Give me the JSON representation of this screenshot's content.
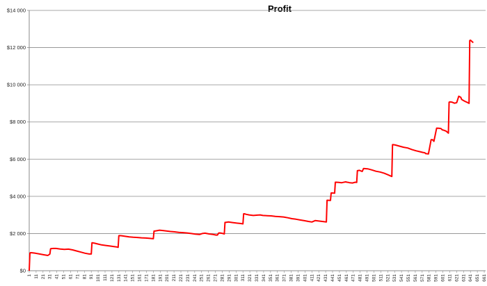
{
  "chart_data": {
    "type": "line",
    "title": "Profit",
    "xlabel": "",
    "ylabel": "",
    "ylim": [
      0,
      14000
    ],
    "xlim": [
      1,
      663
    ],
    "grid": "horizontal",
    "legend": "none",
    "colors": {
      "series": "#ff0000",
      "grid": "#8a8a8a",
      "axis": "#8a8a8a"
    },
    "y_tick_values": [
      0,
      2000,
      4000,
      6000,
      8000,
      10000,
      12000,
      14000
    ],
    "y_tick_labels": [
      "$0",
      "$2 000",
      "$4 000",
      "$6 000",
      "$8 000",
      "$10 000",
      "$12 000",
      "$14 000"
    ],
    "x_tick_values": [
      1,
      11,
      21,
      31,
      41,
      51,
      61,
      71,
      81,
      91,
      101,
      111,
      121,
      131,
      141,
      151,
      161,
      171,
      181,
      191,
      201,
      211,
      221,
      231,
      241,
      251,
      261,
      271,
      281,
      291,
      301,
      311,
      321,
      331,
      341,
      351,
      361,
      371,
      381,
      391,
      401,
      411,
      421,
      431,
      441,
      451,
      461,
      471,
      481,
      491,
      501,
      511,
      521,
      531,
      541,
      551,
      561,
      571,
      581,
      591,
      601,
      611,
      621,
      631,
      641,
      651,
      661
    ],
    "x_tick_labels": [
      "1",
      "11",
      "21",
      "31",
      "41",
      "51",
      "61",
      "71",
      "81",
      "91",
      "101",
      "111",
      "121",
      "131",
      "141",
      "151",
      "161",
      "171",
      "181",
      "191",
      "201",
      "211",
      "221",
      "231",
      "241",
      "251",
      "261",
      "271",
      "281",
      "291",
      "301",
      "311",
      "321",
      "331",
      "341",
      "351",
      "361",
      "371",
      "381",
      "391",
      "401",
      "411",
      "421",
      "431",
      "441",
      "451",
      "461",
      "471",
      "481",
      "491",
      "501",
      "511",
      "521",
      "531",
      "541",
      "551",
      "561",
      "571",
      "581",
      "591",
      "601",
      "611",
      "621",
      "631",
      "641",
      "651",
      "661"
    ],
    "series": [
      {
        "x": [
          1,
          2,
          3,
          6,
          10,
          16,
          22,
          28,
          31,
          32,
          33,
          36,
          40,
          46,
          52,
          58,
          64,
          70,
          76,
          82,
          88,
          91,
          92,
          93,
          96,
          100,
          106,
          112,
          118,
          124,
          128,
          130,
          131,
          132,
          135,
          140,
          146,
          152,
          158,
          164,
          170,
          176,
          181,
          182,
          183,
          186,
          190,
          195,
          200,
          206,
          212,
          218,
          224,
          230,
          236,
          242,
          248,
          252,
          256,
          262,
          268,
          272,
          274,
          276,
          278,
          282,
          284,
          285,
          286,
          290,
          296,
          302,
          308,
          311,
          312,
          313,
          316,
          320,
          326,
          332,
          336,
          340,
          346,
          352,
          358,
          364,
          370,
          376,
          382,
          388,
          394,
          400,
          406,
          411,
          416,
          420,
          424,
          428,
          432,
          433,
          434,
          438,
          439,
          440,
          444,
          445,
          446,
          450,
          452,
          454,
          456,
          460,
          462,
          464,
          466,
          470,
          474,
          476,
          477,
          480,
          484,
          486,
          492,
          498,
          504,
          510,
          516,
          522,
          525,
          527,
          528,
          529,
          532,
          538,
          544,
          550,
          556,
          562,
          568,
          572,
          574,
          575,
          576,
          580,
          584,
          586,
          587,
          588,
          592,
          595,
          598,
          599,
          600,
          603,
          606,
          609,
          610,
          611,
          614,
          618,
          621,
          624,
          627,
          628,
          629,
          633,
          636,
          639,
          640,
          641,
          644,
          645
        ],
        "y": [
          0,
          950,
          970,
          960,
          940,
          900,
          860,
          820,
          900,
          1180,
          1190,
          1200,
          1200,
          1170,
          1150,
          1160,
          1120,
          1060,
          1000,
          940,
          900,
          900,
          1500,
          1500,
          1480,
          1440,
          1390,
          1360,
          1330,
          1300,
          1280,
          1260,
          1880,
          1890,
          1880,
          1850,
          1820,
          1800,
          1790,
          1770,
          1760,
          1740,
          1720,
          2130,
          2130,
          2150,
          2180,
          2160,
          2140,
          2110,
          2090,
          2060,
          2050,
          2030,
          2000,
          1970,
          1950,
          2000,
          2020,
          1980,
          1950,
          1920,
          1920,
          2030,
          2030,
          2000,
          1980,
          2600,
          2600,
          2620,
          2590,
          2560,
          2540,
          2520,
          3060,
          3060,
          3030,
          3000,
          2970,
          2990,
          3000,
          2970,
          2960,
          2950,
          2920,
          2910,
          2890,
          2850,
          2800,
          2770,
          2730,
          2690,
          2650,
          2620,
          2700,
          2680,
          2660,
          2640,
          2620,
          3790,
          3790,
          3780,
          4180,
          4180,
          4170,
          4760,
          4760,
          4750,
          4740,
          4730,
          4750,
          4780,
          4760,
          4750,
          4730,
          4720,
          4760,
          4750,
          5380,
          5400,
          5340,
          5500,
          5480,
          5420,
          5350,
          5310,
          5240,
          5150,
          5100,
          5070,
          6780,
          6780,
          6760,
          6700,
          6640,
          6600,
          6520,
          6450,
          6400,
          6360,
          6350,
          6340,
          6300,
          6280,
          7050,
          7050,
          7000,
          6960,
          7670,
          7660,
          7650,
          7620,
          7580,
          7550,
          7500,
          7400,
          9060,
          9080,
          9070,
          9010,
          9040,
          9380,
          9330,
          9230,
          9190,
          9110,
          9060,
          9000,
          12380,
          12400,
          12300,
          12260
        ]
      }
    ]
  }
}
